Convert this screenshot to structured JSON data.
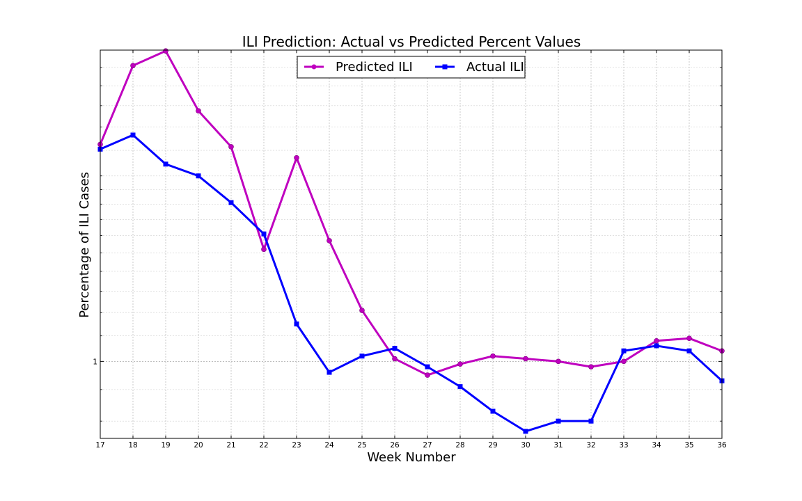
{
  "chart_data": {
    "type": "line",
    "title": "ILI Prediction: Actual vs Predicted Percent Values",
    "xlabel": "Week Number",
    "ylabel": "Percentage of ILI Cases",
    "x": [
      17,
      18,
      19,
      20,
      21,
      22,
      23,
      24,
      25,
      26,
      27,
      28,
      29,
      30,
      31,
      32,
      33,
      34,
      35,
      36
    ],
    "xlim": [
      17,
      36
    ],
    "yscale": "log",
    "ylim": [
      0.75,
      3.2
    ],
    "y_tick_labels": [
      {
        "value": 1,
        "label": "1"
      }
    ],
    "y_minor_ticks": [
      0.8,
      0.9,
      1.1,
      1.2,
      1.3,
      1.4,
      1.5,
      1.6,
      1.7,
      1.8,
      1.9,
      2.0,
      2.2,
      2.4,
      2.6,
      2.8,
      3.0
    ],
    "grid": true,
    "legend": "top-center",
    "series": [
      {
        "name": "Predicted ILI",
        "color": "#bf00bf",
        "marker": "circle",
        "values": [
          2.25,
          3.02,
          3.19,
          2.55,
          2.23,
          1.52,
          2.14,
          1.57,
          1.21,
          1.01,
          0.95,
          0.99,
          1.02,
          1.01,
          1.0,
          0.98,
          1.0,
          1.08,
          1.09,
          1.04
        ]
      },
      {
        "name": "Actual ILI",
        "color": "#0000ff",
        "marker": "square",
        "values": [
          2.21,
          2.33,
          2.09,
          2.0,
          1.81,
          1.61,
          1.15,
          0.96,
          1.02,
          1.05,
          0.98,
          0.91,
          0.83,
          0.77,
          0.8,
          0.8,
          1.04,
          1.06,
          1.04,
          0.93
        ]
      }
    ]
  }
}
